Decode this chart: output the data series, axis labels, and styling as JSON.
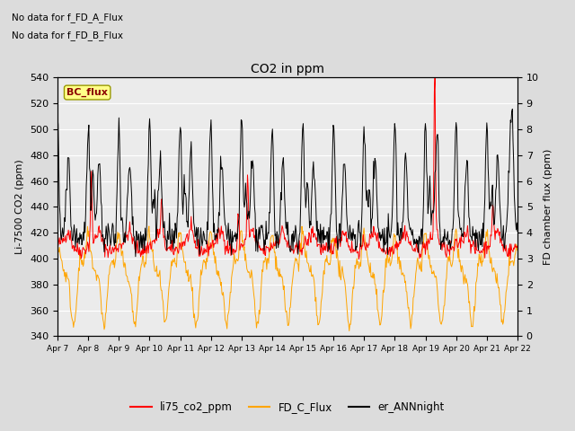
{
  "title": "CO2 in ppm",
  "ylabel_left": "Li-7500 CO2 (ppm)",
  "ylabel_right": "FD chamber flux (ppm)",
  "annotation_lines": [
    "No data for f_FD_A_Flux",
    "No data for f_FD_B_Flux"
  ],
  "bc_flux_label": "BC_flux",
  "legend_labels": [
    "li75_co2_ppm",
    "FD_C_Flux",
    "er_ANNnight"
  ],
  "line_colors": [
    "#ff0000",
    "#ffa500",
    "#000000"
  ],
  "ylim_left": [
    340,
    540
  ],
  "ylim_right": [
    0.0,
    10.0
  ],
  "yticks_left": [
    340,
    360,
    380,
    400,
    420,
    440,
    460,
    480,
    500,
    520,
    540
  ],
  "yticks_right": [
    0.0,
    1.0,
    2.0,
    3.0,
    4.0,
    5.0,
    6.0,
    7.0,
    8.0,
    9.0,
    10.0
  ],
  "xtick_labels": [
    "Apr 7",
    "Apr 8",
    "Apr 9",
    "Apr 10",
    "Apr 11",
    "Apr 12",
    "Apr 13",
    "Apr 14",
    "Apr 15",
    "Apr 16",
    "Apr 17",
    "Apr 18",
    "Apr 19",
    "Apr 20",
    "Apr 21",
    "Apr 22"
  ],
  "bg_color": "#dcdcdc",
  "plot_bg_color": "#ebebeb",
  "grid_color": "#ffffff",
  "figsize": [
    6.4,
    4.8
  ],
  "dpi": 100
}
